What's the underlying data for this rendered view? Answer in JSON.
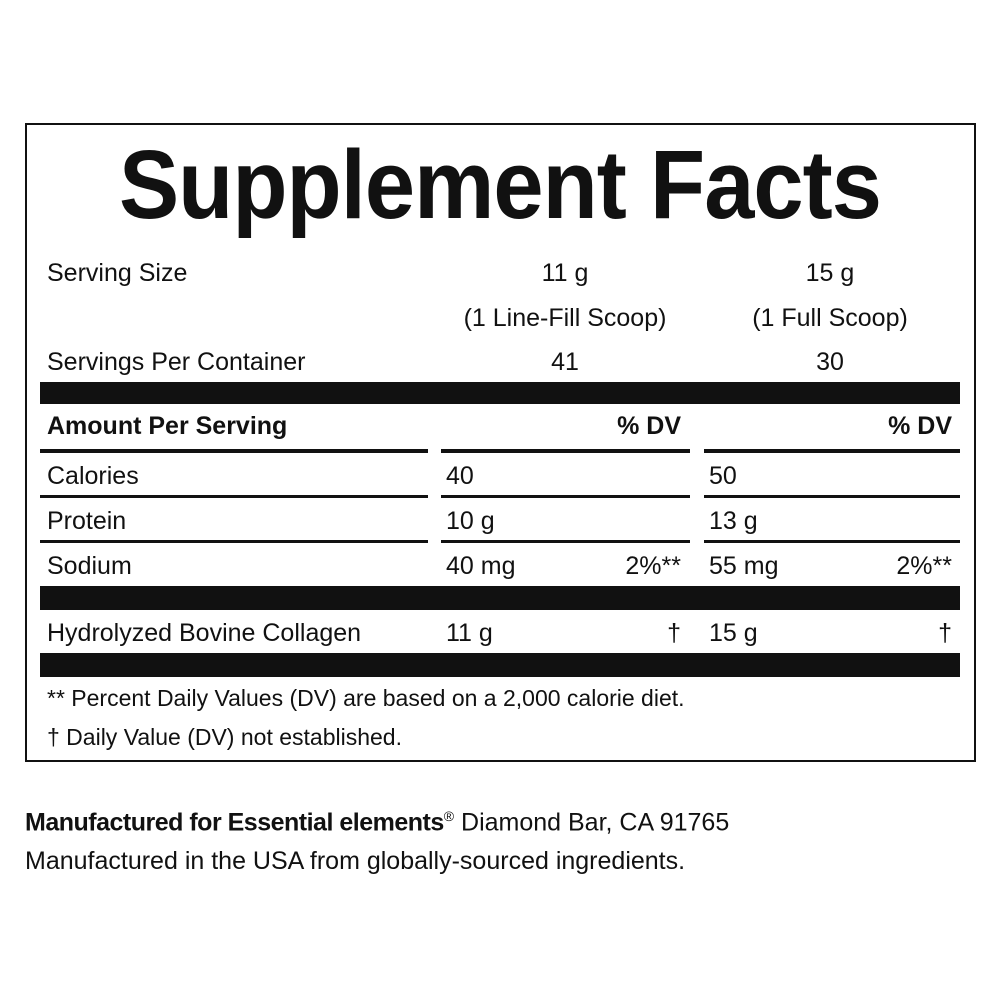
{
  "title": "Supplement Facts",
  "serving": {
    "size_label": "Serving Size",
    "col1_size": "11 g",
    "col1_note": "(1 Line-Fill Scoop)",
    "col2_size": "15 g",
    "col2_note": "(1 Full Scoop)",
    "per_container_label": "Servings Per Container",
    "col1_count": "41",
    "col2_count": "30"
  },
  "header": {
    "amount_label": "Amount Per Serving",
    "dv1": "% DV",
    "dv2": "% DV"
  },
  "rows": [
    {
      "name": "Calories",
      "v1": "40",
      "dv1": "",
      "v2": "50",
      "dv2": ""
    },
    {
      "name": "Protein",
      "v1": "10 g",
      "dv1": "",
      "v2": "13 g",
      "dv2": ""
    },
    {
      "name": "Sodium",
      "v1": "40 mg",
      "dv1": "2%**",
      "v2": "55 mg",
      "dv2": "2%**"
    },
    {
      "name": "Hydrolyzed Bovine Collagen",
      "v1": "11 g",
      "dv1": "†",
      "v2": "15 g",
      "dv2": "†"
    }
  ],
  "footnotes": [
    "** Percent Daily Values (DV) are based on a 2,000 calorie diet.",
    "† Daily Value (DV) not established."
  ],
  "manufacturer": {
    "bold": "Manufactured for Essential elements",
    "reg": "®",
    "address": " Diamond Bar, CA 91765",
    "origin": "Manufactured in the USA from globally-sourced ingredients."
  }
}
